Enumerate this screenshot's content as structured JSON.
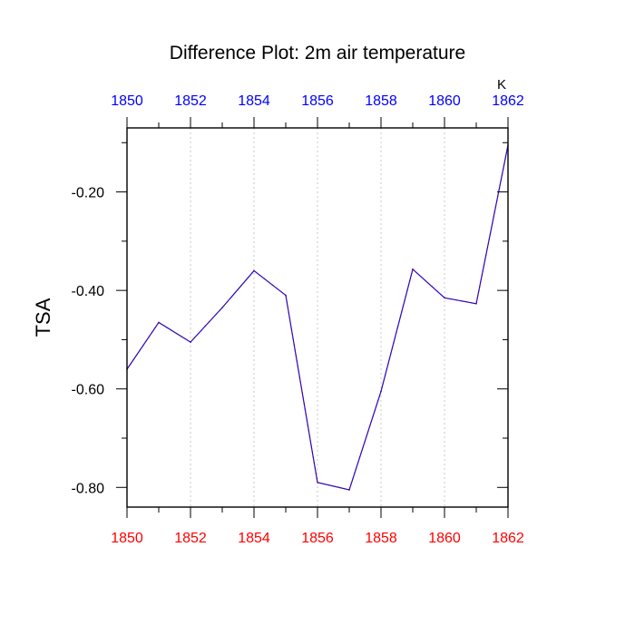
{
  "chart_data": {
    "type": "line",
    "title": "Difference Plot: 2m air temperature",
    "ylabel": "TSA",
    "xlabel": "",
    "unit_label": "K",
    "x": [
      1850,
      1851,
      1852,
      1853,
      1854,
      1855,
      1856,
      1857,
      1858,
      1859,
      1860,
      1861,
      1862
    ],
    "series": [
      {
        "values": [
          -0.56,
          -0.465,
          -0.505,
          -0.435,
          -0.36,
          -0.41,
          -0.79,
          -0.805,
          -0.605,
          -0.357,
          -0.415,
          -0.427,
          -0.105
        ]
      }
    ],
    "xlim": [
      1850,
      1862
    ],
    "ylim": [
      -0.84,
      -0.07
    ],
    "x_ticks": [
      1850,
      1852,
      1854,
      1856,
      1858,
      1860,
      1862
    ],
    "x_tick_labels": [
      "1850",
      "1852",
      "1854",
      "1856",
      "1858",
      "1860",
      "1862"
    ],
    "x_minor_ticks": [
      1851,
      1853,
      1855,
      1857,
      1859,
      1861
    ],
    "y_ticks": [
      -0.2,
      -0.4,
      -0.6,
      -0.8
    ],
    "y_tick_labels": [
      "-0.20",
      "-0.40",
      "-0.60",
      "-0.80"
    ],
    "y_minor_ticks": [
      -0.1,
      -0.3,
      -0.5,
      -0.7
    ],
    "grid": "vertical-dotted",
    "colors": {
      "line": "#4b0082",
      "line_dash": "#1111ff",
      "top_tick_labels": "#0000ff",
      "bottom_tick_labels": "#ff0000",
      "axis": "#000000",
      "grid": "#c8c8c8"
    }
  }
}
